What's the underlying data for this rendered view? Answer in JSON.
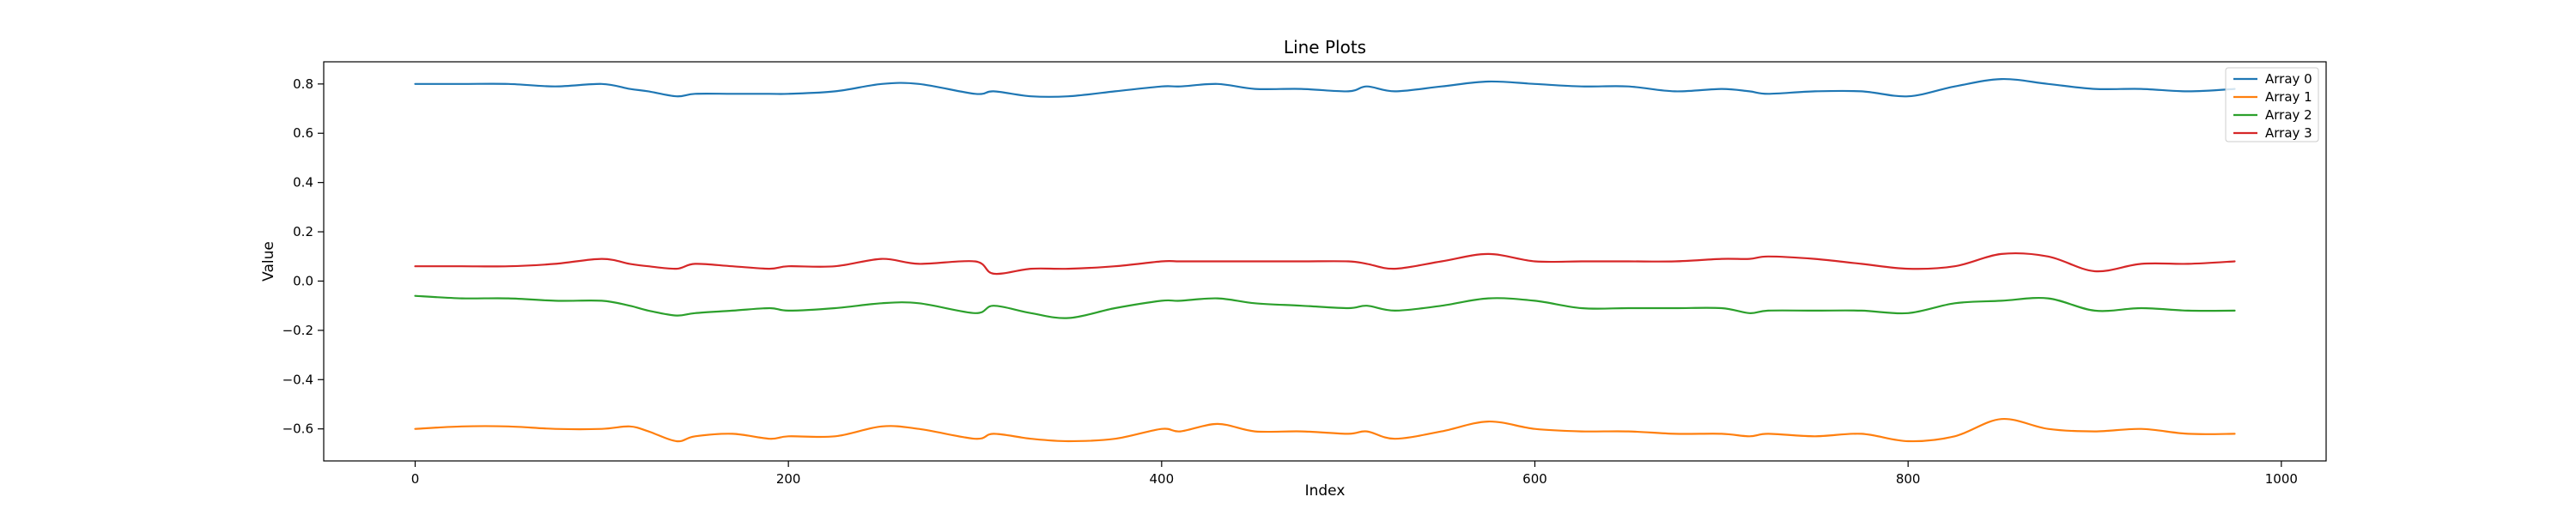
{
  "chart_data": {
    "type": "line",
    "title": "Line Plots",
    "xlabel": "Index",
    "ylabel": "Value",
    "xlim": [
      -49,
      1024
    ],
    "ylim": [
      -0.73,
      0.89
    ],
    "xticks": [
      0,
      200,
      400,
      600,
      800,
      1000
    ],
    "yticks": [
      -0.6,
      -0.4,
      -0.2,
      0.0,
      0.2,
      0.4,
      0.6,
      0.8
    ],
    "xtick_labels": [
      "0",
      "200",
      "400",
      "600",
      "800",
      "1000"
    ],
    "ytick_labels": [
      "−0.6",
      "−0.4",
      "−0.2",
      "0.0",
      "0.2",
      "0.4",
      "0.6",
      "0.8"
    ],
    "grid": false,
    "legend_position": "top-right",
    "x": [
      0,
      25,
      50,
      75,
      100,
      115,
      125,
      140,
      150,
      170,
      190,
      200,
      225,
      250,
      270,
      300,
      310,
      330,
      350,
      375,
      400,
      410,
      430,
      450,
      475,
      500,
      510,
      525,
      550,
      575,
      600,
      625,
      650,
      675,
      700,
      715,
      725,
      750,
      775,
      800,
      825,
      850,
      875,
      900,
      925,
      950,
      975
    ],
    "series": [
      {
        "name": "Array 0",
        "color": "#1f77b4",
        "values": [
          0.8,
          0.8,
          0.8,
          0.79,
          0.8,
          0.78,
          0.77,
          0.75,
          0.76,
          0.76,
          0.76,
          0.76,
          0.77,
          0.8,
          0.8,
          0.76,
          0.77,
          0.75,
          0.75,
          0.77,
          0.79,
          0.79,
          0.8,
          0.78,
          0.78,
          0.77,
          0.79,
          0.77,
          0.79,
          0.81,
          0.8,
          0.79,
          0.79,
          0.77,
          0.78,
          0.77,
          0.76,
          0.77,
          0.77,
          0.75,
          0.79,
          0.82,
          0.8,
          0.78,
          0.78,
          0.77,
          0.78
        ]
      },
      {
        "name": "Array 1",
        "color": "#ff7f0e",
        "values": [
          -0.6,
          -0.59,
          -0.59,
          -0.6,
          -0.6,
          -0.59,
          -0.61,
          -0.65,
          -0.63,
          -0.62,
          -0.64,
          -0.63,
          -0.63,
          -0.59,
          -0.6,
          -0.64,
          -0.62,
          -0.64,
          -0.65,
          -0.64,
          -0.6,
          -0.61,
          -0.58,
          -0.61,
          -0.61,
          -0.62,
          -0.61,
          -0.64,
          -0.61,
          -0.57,
          -0.6,
          -0.61,
          -0.61,
          -0.62,
          -0.62,
          -0.63,
          -0.62,
          -0.63,
          -0.62,
          -0.65,
          -0.63,
          -0.56,
          -0.6,
          -0.61,
          -0.6,
          -0.62,
          -0.62
        ]
      },
      {
        "name": "Array 2",
        "color": "#2ca02c",
        "values": [
          -0.06,
          -0.07,
          -0.07,
          -0.08,
          -0.08,
          -0.1,
          -0.12,
          -0.14,
          -0.13,
          -0.12,
          -0.11,
          -0.12,
          -0.11,
          -0.09,
          -0.09,
          -0.13,
          -0.1,
          -0.13,
          -0.15,
          -0.11,
          -0.08,
          -0.08,
          -0.07,
          -0.09,
          -0.1,
          -0.11,
          -0.1,
          -0.12,
          -0.1,
          -0.07,
          -0.08,
          -0.11,
          -0.11,
          -0.11,
          -0.11,
          -0.13,
          -0.12,
          -0.12,
          -0.12,
          -0.13,
          -0.09,
          -0.08,
          -0.07,
          -0.12,
          -0.11,
          -0.12,
          -0.12
        ]
      },
      {
        "name": "Array 3",
        "color": "#d62728",
        "values": [
          0.06,
          0.06,
          0.06,
          0.07,
          0.09,
          0.07,
          0.06,
          0.05,
          0.07,
          0.06,
          0.05,
          0.06,
          0.06,
          0.09,
          0.07,
          0.08,
          0.03,
          0.05,
          0.05,
          0.06,
          0.08,
          0.08,
          0.08,
          0.08,
          0.08,
          0.08,
          0.07,
          0.05,
          0.08,
          0.11,
          0.08,
          0.08,
          0.08,
          0.08,
          0.09,
          0.09,
          0.1,
          0.09,
          0.07,
          0.05,
          0.06,
          0.11,
          0.1,
          0.04,
          0.07,
          0.07,
          0.08
        ]
      }
    ]
  }
}
